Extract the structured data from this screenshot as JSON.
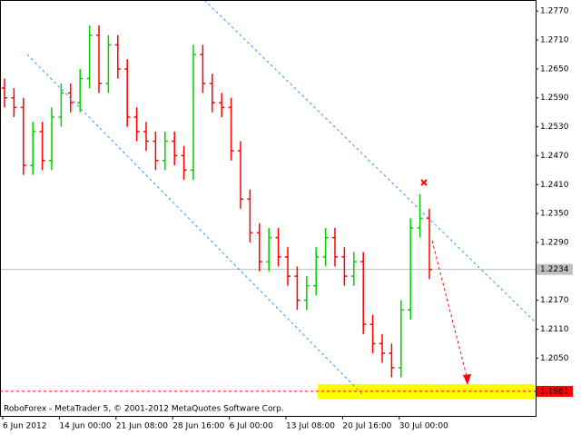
{
  "chart_data": {
    "type": "ohlc",
    "footer": "RoboForex - MetaTrader 5, © 2001-2012 MetaQuotes Software Corp.",
    "categories": [
      "6 Jun 2012",
      null,
      null,
      null,
      null,
      null,
      "14 Jun 00:00",
      null,
      null,
      null,
      null,
      null,
      "21 Jun 08:00",
      null,
      null,
      null,
      null,
      null,
      "28 Jun 16:00",
      null,
      null,
      null,
      null,
      null,
      "6 Jul 00:00",
      null,
      null,
      null,
      null,
      null,
      "13 Jul 08:00",
      null,
      null,
      null,
      null,
      null,
      "20 Jul 16:00",
      null,
      null,
      null,
      null,
      null,
      "30 Jul 00:00",
      null,
      null,
      null
    ],
    "open": [
      1.261,
      1.259,
      1.257,
      1.245,
      1.252,
      1.246,
      1.255,
      1.26,
      1.258,
      1.263,
      1.272,
      1.262,
      1.27,
      1.265,
      1.255,
      1.252,
      1.25,
      1.246,
      1.25,
      1.247,
      1.244,
      1.268,
      1.262,
      1.258,
      1.257,
      1.248,
      1.238,
      1.231,
      1.225,
      1.23,
      1.226,
      1.222,
      1.217,
      1.22,
      1.226,
      1.23,
      1.226,
      1.222,
      1.225,
      1.212,
      1.208,
      1.206,
      1.203,
      1.215,
      1.232,
      1.234
    ],
    "high": [
      1.263,
      1.261,
      1.259,
      1.254,
      1.254,
      1.257,
      1.262,
      1.262,
      1.265,
      1.274,
      1.274,
      1.272,
      1.272,
      1.267,
      1.257,
      1.254,
      1.252,
      1.252,
      1.252,
      1.249,
      1.27,
      1.27,
      1.264,
      1.26,
      1.259,
      1.25,
      1.24,
      1.233,
      1.232,
      1.232,
      1.228,
      1.224,
      1.222,
      1.228,
      1.232,
      1.232,
      1.228,
      1.227,
      1.227,
      1.214,
      1.21,
      1.208,
      1.217,
      1.234,
      1.239,
      1.236
    ],
    "low": [
      1.257,
      1.255,
      1.243,
      1.243,
      1.244,
      1.244,
      1.253,
      1.256,
      1.256,
      1.261,
      1.26,
      1.26,
      1.263,
      1.253,
      1.25,
      1.248,
      1.244,
      1.244,
      1.245,
      1.242,
      1.242,
      1.26,
      1.256,
      1.255,
      1.246,
      1.236,
      1.229,
      1.223,
      1.223,
      1.224,
      1.22,
      1.215,
      1.215,
      1.218,
      1.224,
      1.224,
      1.22,
      1.22,
      1.21,
      1.206,
      1.204,
      1.201,
      1.201,
      1.213,
      1.23,
      1.2214
    ],
    "close": [
      1.259,
      1.257,
      1.245,
      1.252,
      1.246,
      1.255,
      1.26,
      1.258,
      1.263,
      1.272,
      1.262,
      1.27,
      1.265,
      1.255,
      1.252,
      1.25,
      1.246,
      1.25,
      1.247,
      1.244,
      1.268,
      1.262,
      1.258,
      1.257,
      1.248,
      1.238,
      1.231,
      1.225,
      1.23,
      1.226,
      1.222,
      1.217,
      1.22,
      1.226,
      1.23,
      1.226,
      1.222,
      1.225,
      1.212,
      1.208,
      1.206,
      1.203,
      1.215,
      1.232,
      1.234,
      1.2234
    ],
    "up_color": "#00d000",
    "down_color": "#ff0000",
    "ylim": [
      1.193,
      1.2793
    ],
    "yticks": [
      {
        "value": 1.277,
        "label": "1.2770"
      },
      {
        "value": 1.271,
        "label": "1.2710"
      },
      {
        "value": 1.265,
        "label": "1.2650"
      },
      {
        "value": 1.259,
        "label": "1.2590"
      },
      {
        "value": 1.253,
        "label": "1.2530"
      },
      {
        "value": 1.247,
        "label": "1.2470"
      },
      {
        "value": 1.241,
        "label": "1.2410"
      },
      {
        "value": 1.235,
        "label": "1.2350"
      },
      {
        "value": 1.229,
        "label": "1.2290"
      },
      {
        "value": 1.217,
        "label": "1.2170"
      },
      {
        "value": 1.211,
        "label": "1.2110"
      },
      {
        "value": 1.205,
        "label": "1.2050"
      }
    ],
    "current_price": 1.2234,
    "target": 1.1981
  }
}
